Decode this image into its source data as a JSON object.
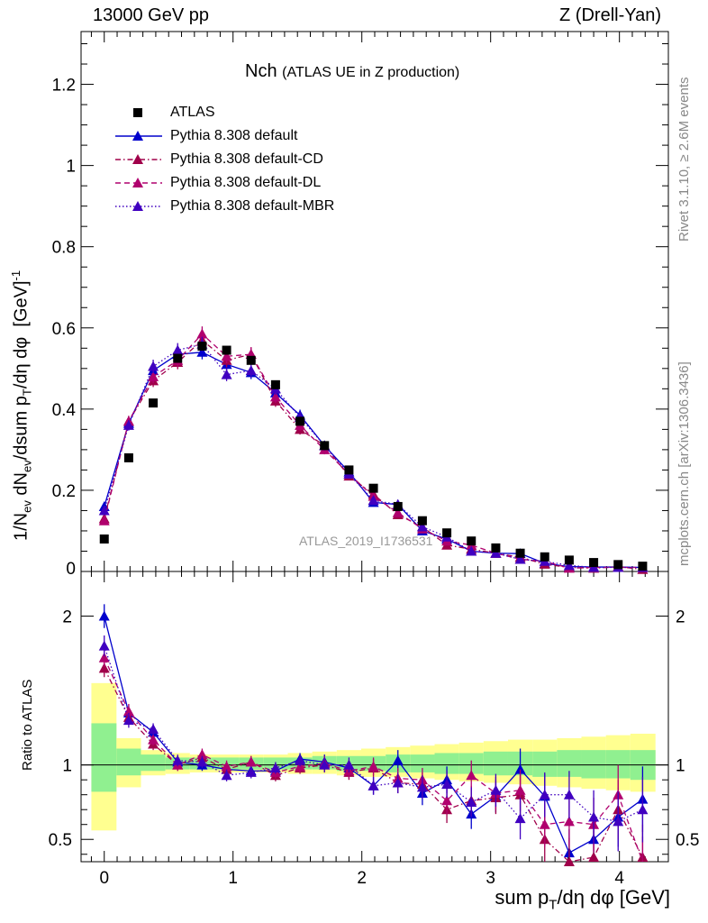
{
  "header": {
    "left": "13000 GeV pp",
    "right": "Z (Drell-Yan)"
  },
  "title": {
    "main": "Nch",
    "sub": "(ATLAS UE in Z production)"
  },
  "side_labels": {
    "rivet": "Rivet 3.1.10, ≥ 2.6M events",
    "mcplots": "mcplots.cern.ch [arXiv:1306.3436]"
  },
  "watermark": "ATLAS_2019_I1736531",
  "colors": {
    "atlas": "#000000",
    "default": "#0000cc",
    "cd": "#a0004a",
    "dl": "#b0006e",
    "mbr": "#4000c0",
    "band_inner": "#90f090",
    "band_outer": "#ffff90"
  },
  "legend": [
    {
      "label": "ATLAS",
      "style": "marker-square"
    },
    {
      "label": "Pythia 8.308 default",
      "style": "solid"
    },
    {
      "label": "Pythia 8.308 default-CD",
      "style": "dashdot"
    },
    {
      "label": "Pythia 8.308 default-DL",
      "style": "dashed"
    },
    {
      "label": "Pythia 8.308 default-MBR",
      "style": "dotted"
    }
  ],
  "chart_data": {
    "type": "line",
    "xlabel": "sum pT/dη dφ [GeV]",
    "ylabel": "1/Nev dNev/dsum pT/dη dφ [GeV]^-1",
    "ratio_ylabel": "Ratio to ATLAS",
    "xlim": [
      -0.18,
      4.38
    ],
    "ylim": [
      0,
      1.33
    ],
    "ratio_ylim": [
      0.35,
      2.3
    ],
    "x_ticks": [
      0,
      1,
      2,
      3,
      4
    ],
    "y_ticks": [
      0.2,
      0.4,
      0.6,
      0.8,
      1,
      1.2
    ],
    "ratio_ticks": [
      0.5,
      1,
      2
    ],
    "x": [
      0,
      0.19,
      0.38,
      0.57,
      0.76,
      0.95,
      1.14,
      1.33,
      1.52,
      1.71,
      1.9,
      2.09,
      2.28,
      2.47,
      2.66,
      2.85,
      3.04,
      3.23,
      3.42,
      3.61,
      3.8,
      3.99,
      4.18
    ],
    "bin_edges": [
      -0.1,
      0.095,
      0.285,
      0.475,
      0.665,
      0.855,
      1.045,
      1.235,
      1.425,
      1.615,
      1.805,
      1.995,
      2.185,
      2.375,
      2.565,
      2.755,
      2.945,
      3.135,
      3.325,
      3.515,
      3.705,
      3.895,
      4.085,
      4.28
    ],
    "atlas": [
      0.08,
      0.28,
      0.415,
      0.525,
      0.555,
      0.545,
      0.52,
      0.46,
      0.37,
      0.31,
      0.25,
      0.205,
      0.16,
      0.125,
      0.095,
      0.075,
      0.058,
      0.045,
      0.036,
      0.028,
      0.022,
      0.017,
      0.013
    ],
    "series": [
      {
        "name": "Pythia 8.308 default",
        "key": "default",
        "values": [
          0.16,
          0.365,
          0.495,
          0.535,
          0.54,
          0.51,
          0.49,
          0.44,
          0.385,
          0.31,
          0.245,
          0.17,
          0.165,
          0.1,
          0.08,
          0.05,
          0.045,
          0.044,
          0.02,
          0.012,
          0.011,
          0.011,
          0.01
        ],
        "ratio": [
          2.0,
          1.35,
          1.22,
          1.02,
          1.0,
          0.97,
          0.96,
          0.96,
          1.04,
          1.02,
          0.98,
          0.86,
          1.03,
          0.81,
          0.9,
          0.67,
          0.79,
          0.97,
          0.79,
          0.41,
          0.5,
          0.65,
          0.77
        ],
        "ratio_err": [
          0.08,
          0.05,
          0.04,
          0.04,
          0.04,
          0.04,
          0.04,
          0.04,
          0.04,
          0.05,
          0.05,
          0.06,
          0.07,
          0.08,
          0.09,
          0.1,
          0.11,
          0.14,
          0.15,
          0.16,
          0.18,
          0.2,
          0.22
        ]
      },
      {
        "name": "Pythia 8.308 default-CD",
        "key": "cd",
        "values": [
          0.13,
          0.37,
          0.47,
          0.515,
          0.57,
          0.52,
          0.535,
          0.42,
          0.35,
          0.31,
          0.235,
          0.19,
          0.14,
          0.11,
          0.065,
          0.055,
          0.045,
          0.035,
          0.018,
          0.01,
          0.008,
          0.012,
          0.005
        ],
        "ratio": [
          1.65,
          1.32,
          1.14,
          1.0,
          1.05,
          0.97,
          1.02,
          0.93,
          0.98,
          1.0,
          0.95,
          0.98,
          0.88,
          0.87,
          0.7,
          0.76,
          0.78,
          0.8,
          0.5,
          0.35,
          0.38,
          0.7,
          0.38
        ],
        "ratio_err": [
          0.06,
          0.05,
          0.04,
          0.04,
          0.04,
          0.04,
          0.04,
          0.04,
          0.04,
          0.05,
          0.05,
          0.06,
          0.07,
          0.08,
          0.09,
          0.1,
          0.11,
          0.14,
          0.15,
          0.16,
          0.18,
          0.2,
          0.22
        ]
      },
      {
        "name": "Pythia 8.308 default-DL",
        "key": "dl",
        "values": [
          0.125,
          0.37,
          0.48,
          0.52,
          0.585,
          0.53,
          0.535,
          0.43,
          0.36,
          0.3,
          0.24,
          0.185,
          0.145,
          0.105,
          0.075,
          0.065,
          0.045,
          0.03,
          0.025,
          0.008,
          0.01,
          0.01,
          0.01
        ],
        "ratio": [
          1.72,
          1.36,
          1.17,
          1.0,
          1.07,
          0.99,
          1.02,
          0.95,
          0.99,
          1.01,
          0.96,
          0.99,
          0.91,
          0.9,
          0.76,
          0.93,
          0.81,
          0.83,
          0.6,
          0.62,
          0.6,
          0.8,
          0.3
        ],
        "ratio_err": [
          0.06,
          0.05,
          0.04,
          0.04,
          0.04,
          0.04,
          0.04,
          0.04,
          0.04,
          0.05,
          0.05,
          0.06,
          0.07,
          0.08,
          0.09,
          0.1,
          0.11,
          0.14,
          0.15,
          0.16,
          0.18,
          0.2,
          0.22
        ]
      },
      {
        "name": "Pythia 8.308 default-MBR",
        "key": "mbr",
        "values": [
          0.15,
          0.36,
          0.505,
          0.545,
          0.56,
          0.485,
          0.495,
          0.45,
          0.38,
          0.31,
          0.24,
          0.175,
          0.165,
          0.11,
          0.085,
          0.05,
          0.045,
          0.03,
          0.025,
          0.015,
          0.01,
          0.01,
          0.01
        ],
        "ratio": [
          1.8,
          1.3,
          1.24,
          1.03,
          1.02,
          0.93,
          0.95,
          0.98,
          1.03,
          1.0,
          1.0,
          0.86,
          0.88,
          0.85,
          0.87,
          0.75,
          0.83,
          0.64,
          0.8,
          0.8,
          0.65,
          0.62,
          0.7
        ],
        "ratio_err": [
          0.07,
          0.05,
          0.04,
          0.04,
          0.04,
          0.04,
          0.04,
          0.04,
          0.04,
          0.05,
          0.05,
          0.06,
          0.07,
          0.08,
          0.09,
          0.1,
          0.11,
          0.14,
          0.15,
          0.16,
          0.18,
          0.2,
          0.22
        ]
      }
    ],
    "band_inner": [
      [
        0.82,
        1.28
      ],
      [
        0.93,
        1.11
      ],
      [
        0.96,
        1.07
      ],
      [
        0.97,
        1.05
      ],
      [
        0.97,
        1.05
      ],
      [
        0.97,
        1.05
      ],
      [
        0.97,
        1.05
      ],
      [
        0.97,
        1.05
      ],
      [
        0.97,
        1.05
      ],
      [
        0.97,
        1.06
      ],
      [
        0.96,
        1.06
      ],
      [
        0.96,
        1.06
      ],
      [
        0.95,
        1.07
      ],
      [
        0.95,
        1.07
      ],
      [
        0.94,
        1.08
      ],
      [
        0.94,
        1.08
      ],
      [
        0.93,
        1.09
      ],
      [
        0.93,
        1.09
      ],
      [
        0.92,
        1.09
      ],
      [
        0.92,
        1.1
      ],
      [
        0.91,
        1.1
      ],
      [
        0.91,
        1.1
      ],
      [
        0.9,
        1.1
      ]
    ],
    "band_outer": [
      [
        0.56,
        1.55
      ],
      [
        0.85,
        1.18
      ],
      [
        0.93,
        1.1
      ],
      [
        0.94,
        1.08
      ],
      [
        0.95,
        1.07
      ],
      [
        0.95,
        1.07
      ],
      [
        0.95,
        1.07
      ],
      [
        0.95,
        1.07
      ],
      [
        0.94,
        1.08
      ],
      [
        0.94,
        1.09
      ],
      [
        0.93,
        1.1
      ],
      [
        0.92,
        1.11
      ],
      [
        0.92,
        1.12
      ],
      [
        0.91,
        1.13
      ],
      [
        0.9,
        1.14
      ],
      [
        0.89,
        1.15
      ],
      [
        0.88,
        1.16
      ],
      [
        0.87,
        1.17
      ],
      [
        0.86,
        1.17
      ],
      [
        0.85,
        1.18
      ],
      [
        0.84,
        1.19
      ],
      [
        0.83,
        1.2
      ],
      [
        0.82,
        1.21
      ]
    ]
  }
}
